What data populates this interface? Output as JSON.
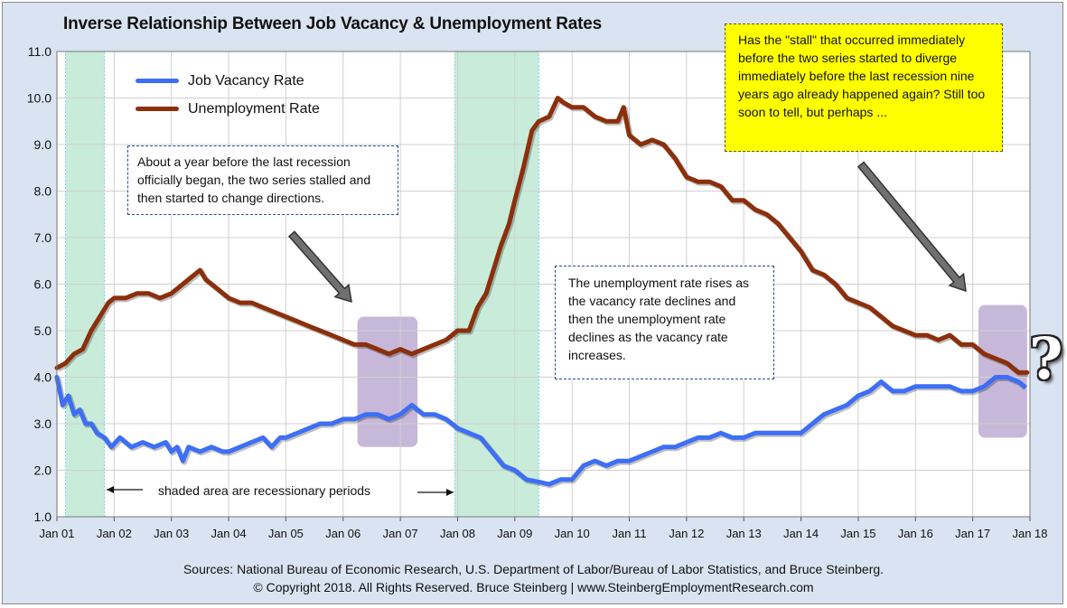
{
  "title": "Inverse Relationship Between Job Vacancy & Unemployment Rates",
  "legend": {
    "vacancy_label": "Job Vacancy Rate",
    "unemployment_label": "Unemployment Rate"
  },
  "annotations": {
    "stall_note": "About a year before the last recession officially began, the two series stalled and then started to change directions.",
    "inverse_note": "The unemployment rate rises as the vacancy rate declines and then the unemployment rate declines as the vacancy rate increases.",
    "question_note": "Has the \"stall\" that occurred immediately before the two series started to diverge immediately before the last recession nine years ago already happened again? Still too soon to tell, but perhaps ...",
    "shaded_label": "shaded area are recessionary periods",
    "question_mark": "?"
  },
  "sources": {
    "line1": "Sources: National Bureau of Economic Research, U.S. Department of Labor/Bureau of Labor Statistics, and Bruce Steinberg.",
    "line2": "© Copyright 2018. All Rights Reserved. Bruce Steinberg | www.SteinbergEmploymentResearch.com"
  },
  "colors": {
    "vacancy": "#3d6ef5",
    "unemployment": "#8b2f0c",
    "recession_shade": "#c8ecd9",
    "stall_shade": "#b9a6cf",
    "arrow": "#707070"
  },
  "chart_data": {
    "type": "line",
    "x_ticks": [
      "Jan 01",
      "Jan 02",
      "Jan 03",
      "Jan 04",
      "Jan 05",
      "Jan 06",
      "Jan 07",
      "Jan 08",
      "Jan 09",
      "Jan 10",
      "Jan 11",
      "Jan 12",
      "Jan 13",
      "Jan 14",
      "Jan 15",
      "Jan 16",
      "Jan 17",
      "Jan 18"
    ],
    "y_ticks": [
      "1.0",
      "2.0",
      "3.0",
      "4.0",
      "5.0",
      "6.0",
      "7.0",
      "8.0",
      "9.0",
      "10.0",
      "11.0"
    ],
    "ylim": [
      1.0,
      11.0
    ],
    "xlim": [
      2001.0,
      2018.0
    ],
    "grid": true,
    "legend_position": "top-left",
    "recessions": [
      [
        2001.15,
        2001.83
      ],
      [
        2007.95,
        2009.42
      ]
    ],
    "stall_highlights": [
      {
        "x": [
          2006.25,
          2007.3
        ],
        "y": [
          2.5,
          5.3
        ]
      },
      {
        "x": [
          2017.1,
          2017.95
        ],
        "y": [
          2.7,
          5.55
        ]
      }
    ],
    "series": [
      {
        "name": "Job Vacancy Rate",
        "points": [
          [
            2001.0,
            4.0
          ],
          [
            2001.1,
            3.4
          ],
          [
            2001.2,
            3.6
          ],
          [
            2001.3,
            3.2
          ],
          [
            2001.4,
            3.3
          ],
          [
            2001.5,
            3.0
          ],
          [
            2001.6,
            3.0
          ],
          [
            2001.7,
            2.8
          ],
          [
            2001.83,
            2.7
          ],
          [
            2001.95,
            2.5
          ],
          [
            2002.1,
            2.7
          ],
          [
            2002.3,
            2.5
          ],
          [
            2002.5,
            2.6
          ],
          [
            2002.7,
            2.5
          ],
          [
            2002.9,
            2.6
          ],
          [
            2003.0,
            2.4
          ],
          [
            2003.1,
            2.5
          ],
          [
            2003.2,
            2.2
          ],
          [
            2003.3,
            2.5
          ],
          [
            2003.5,
            2.4
          ],
          [
            2003.7,
            2.5
          ],
          [
            2003.9,
            2.4
          ],
          [
            2004.0,
            2.4
          ],
          [
            2004.2,
            2.5
          ],
          [
            2004.4,
            2.6
          ],
          [
            2004.6,
            2.7
          ],
          [
            2004.75,
            2.5
          ],
          [
            2004.9,
            2.7
          ],
          [
            2005.0,
            2.7
          ],
          [
            2005.2,
            2.8
          ],
          [
            2005.4,
            2.9
          ],
          [
            2005.6,
            3.0
          ],
          [
            2005.8,
            3.0
          ],
          [
            2006.0,
            3.1
          ],
          [
            2006.2,
            3.1
          ],
          [
            2006.4,
            3.2
          ],
          [
            2006.6,
            3.2
          ],
          [
            2006.8,
            3.1
          ],
          [
            2007.0,
            3.2
          ],
          [
            2007.2,
            3.4
          ],
          [
            2007.4,
            3.2
          ],
          [
            2007.6,
            3.2
          ],
          [
            2007.8,
            3.1
          ],
          [
            2008.0,
            2.9
          ],
          [
            2008.2,
            2.8
          ],
          [
            2008.4,
            2.7
          ],
          [
            2008.6,
            2.4
          ],
          [
            2008.8,
            2.1
          ],
          [
            2009.0,
            2.0
          ],
          [
            2009.2,
            1.8
          ],
          [
            2009.42,
            1.75
          ],
          [
            2009.6,
            1.7
          ],
          [
            2009.8,
            1.8
          ],
          [
            2010.0,
            1.8
          ],
          [
            2010.2,
            2.1
          ],
          [
            2010.4,
            2.2
          ],
          [
            2010.6,
            2.1
          ],
          [
            2010.8,
            2.2
          ],
          [
            2011.0,
            2.2
          ],
          [
            2011.2,
            2.3
          ],
          [
            2011.4,
            2.4
          ],
          [
            2011.6,
            2.5
          ],
          [
            2011.8,
            2.5
          ],
          [
            2012.0,
            2.6
          ],
          [
            2012.2,
            2.7
          ],
          [
            2012.4,
            2.7
          ],
          [
            2012.6,
            2.8
          ],
          [
            2012.8,
            2.7
          ],
          [
            2013.0,
            2.7
          ],
          [
            2013.2,
            2.8
          ],
          [
            2013.4,
            2.8
          ],
          [
            2013.6,
            2.8
          ],
          [
            2013.8,
            2.8
          ],
          [
            2014.0,
            2.8
          ],
          [
            2014.2,
            3.0
          ],
          [
            2014.4,
            3.2
          ],
          [
            2014.6,
            3.3
          ],
          [
            2014.8,
            3.4
          ],
          [
            2015.0,
            3.6
          ],
          [
            2015.2,
            3.7
          ],
          [
            2015.4,
            3.9
          ],
          [
            2015.6,
            3.7
          ],
          [
            2015.8,
            3.7
          ],
          [
            2016.0,
            3.8
          ],
          [
            2016.2,
            3.8
          ],
          [
            2016.4,
            3.8
          ],
          [
            2016.6,
            3.8
          ],
          [
            2016.8,
            3.7
          ],
          [
            2017.0,
            3.7
          ],
          [
            2017.2,
            3.8
          ],
          [
            2017.4,
            4.0
          ],
          [
            2017.6,
            4.0
          ],
          [
            2017.8,
            3.9
          ],
          [
            2017.9,
            3.8
          ]
        ]
      },
      {
        "name": "Unemployment Rate",
        "points": [
          [
            2001.0,
            4.2
          ],
          [
            2001.15,
            4.3
          ],
          [
            2001.3,
            4.5
          ],
          [
            2001.45,
            4.6
          ],
          [
            2001.6,
            5.0
          ],
          [
            2001.75,
            5.3
          ],
          [
            2001.9,
            5.6
          ],
          [
            2002.0,
            5.7
          ],
          [
            2002.2,
            5.7
          ],
          [
            2002.4,
            5.8
          ],
          [
            2002.6,
            5.8
          ],
          [
            2002.8,
            5.7
          ],
          [
            2003.0,
            5.8
          ],
          [
            2003.2,
            6.0
          ],
          [
            2003.4,
            6.2
          ],
          [
            2003.5,
            6.3
          ],
          [
            2003.6,
            6.1
          ],
          [
            2003.8,
            5.9
          ],
          [
            2004.0,
            5.7
          ],
          [
            2004.2,
            5.6
          ],
          [
            2004.4,
            5.6
          ],
          [
            2004.6,
            5.5
          ],
          [
            2004.8,
            5.4
          ],
          [
            2005.0,
            5.3
          ],
          [
            2005.2,
            5.2
          ],
          [
            2005.4,
            5.1
          ],
          [
            2005.6,
            5.0
          ],
          [
            2005.8,
            4.9
          ],
          [
            2006.0,
            4.8
          ],
          [
            2006.2,
            4.7
          ],
          [
            2006.4,
            4.7
          ],
          [
            2006.6,
            4.6
          ],
          [
            2006.8,
            4.5
          ],
          [
            2007.0,
            4.6
          ],
          [
            2007.2,
            4.5
          ],
          [
            2007.4,
            4.6
          ],
          [
            2007.6,
            4.7
          ],
          [
            2007.8,
            4.8
          ],
          [
            2008.0,
            5.0
          ],
          [
            2008.2,
            5.0
          ],
          [
            2008.35,
            5.5
          ],
          [
            2008.5,
            5.8
          ],
          [
            2008.6,
            6.2
          ],
          [
            2008.75,
            6.8
          ],
          [
            2008.9,
            7.3
          ],
          [
            2009.0,
            7.8
          ],
          [
            2009.15,
            8.5
          ],
          [
            2009.3,
            9.3
          ],
          [
            2009.42,
            9.5
          ],
          [
            2009.6,
            9.6
          ],
          [
            2009.75,
            10.0
          ],
          [
            2009.85,
            9.9
          ],
          [
            2010.0,
            9.8
          ],
          [
            2010.2,
            9.8
          ],
          [
            2010.4,
            9.6
          ],
          [
            2010.6,
            9.5
          ],
          [
            2010.8,
            9.5
          ],
          [
            2010.9,
            9.8
          ],
          [
            2011.0,
            9.2
          ],
          [
            2011.2,
            9.0
          ],
          [
            2011.4,
            9.1
          ],
          [
            2011.6,
            9.0
          ],
          [
            2011.8,
            8.7
          ],
          [
            2012.0,
            8.3
          ],
          [
            2012.2,
            8.2
          ],
          [
            2012.4,
            8.2
          ],
          [
            2012.6,
            8.1
          ],
          [
            2012.8,
            7.8
          ],
          [
            2013.0,
            7.8
          ],
          [
            2013.2,
            7.6
          ],
          [
            2013.4,
            7.5
          ],
          [
            2013.6,
            7.3
          ],
          [
            2013.8,
            7.0
          ],
          [
            2014.0,
            6.7
          ],
          [
            2014.2,
            6.3
          ],
          [
            2014.4,
            6.2
          ],
          [
            2014.6,
            6.0
          ],
          [
            2014.8,
            5.7
          ],
          [
            2015.0,
            5.6
          ],
          [
            2015.2,
            5.5
          ],
          [
            2015.4,
            5.3
          ],
          [
            2015.6,
            5.1
          ],
          [
            2015.8,
            5.0
          ],
          [
            2016.0,
            4.9
          ],
          [
            2016.2,
            4.9
          ],
          [
            2016.4,
            4.8
          ],
          [
            2016.6,
            4.9
          ],
          [
            2016.8,
            4.7
          ],
          [
            2017.0,
            4.7
          ],
          [
            2017.2,
            4.5
          ],
          [
            2017.4,
            4.4
          ],
          [
            2017.6,
            4.3
          ],
          [
            2017.8,
            4.1
          ],
          [
            2017.95,
            4.1
          ]
        ]
      }
    ]
  }
}
